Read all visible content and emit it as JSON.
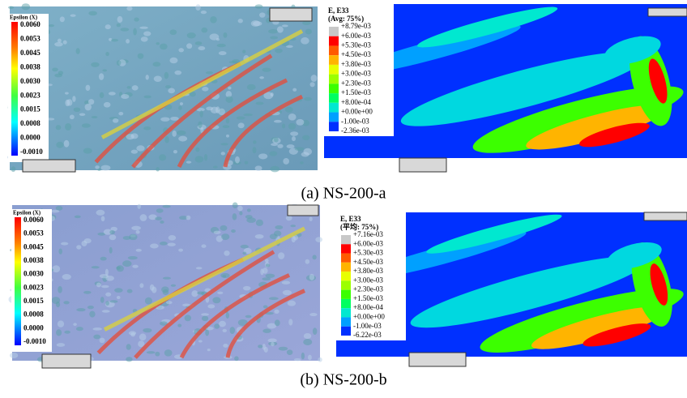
{
  "panel_a": {
    "caption": "(a) NS-200-a",
    "dic": {
      "title": "Epsilon (X)",
      "scale": [
        "0.0060",
        "0.0053",
        "0.0045",
        "0.0038",
        "0.0030",
        "0.0023",
        "0.0015",
        "0.0008",
        "0.0000",
        "-0.0010"
      ]
    },
    "fea": {
      "title": [
        "E, E33",
        "(Avg: 75%)"
      ],
      "scale": [
        "+8.79e-03",
        "+6.00e-03",
        "+5.30e-03",
        "+4.50e-03",
        "+3.80e-03",
        "+3.00e-03",
        "+2.30e-03",
        "+1.50e-03",
        "+8.00e-04",
        "+0.00e+00",
        "-1.00e-03",
        "-2.36e-03"
      ]
    }
  },
  "panel_b": {
    "caption": "(b) NS-200-b",
    "dic": {
      "title": "Epsilon (X)",
      "scale": [
        "0.0060",
        "0.0053",
        "0.0045",
        "0.0038",
        "0.0030",
        "0.0023",
        "0.0015",
        "0.0008",
        "0.0000",
        "-0.0010"
      ]
    },
    "fea": {
      "title": [
        "E, E33",
        "(平均: 75%)"
      ],
      "scale": [
        "+7.16e-03",
        "+6.00e-03",
        "+5.30e-03",
        "+4.50e-03",
        "+3.80e-03",
        "+3.00e-03",
        "+2.30e-03",
        "+1.50e-03",
        "+8.00e-04",
        "+0.00e+00",
        "-1.00e-03",
        "-6.22e-03"
      ]
    }
  }
}
